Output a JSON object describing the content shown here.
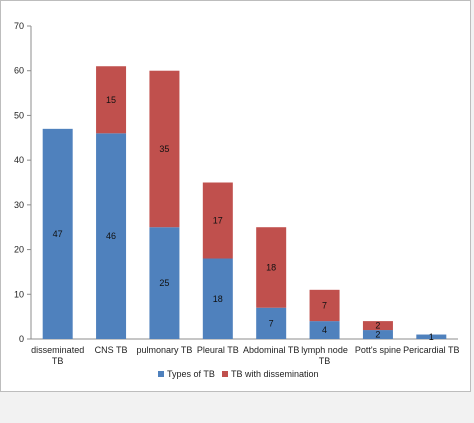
{
  "chart_data": {
    "type": "bar",
    "stacked": true,
    "categories": [
      [
        "disseminated",
        "TB"
      ],
      [
        "CNS TB"
      ],
      [
        "pulmonary TB"
      ],
      [
        "Pleural TB"
      ],
      [
        "Abdominal TB"
      ],
      [
        "lymph node",
        "TB"
      ],
      [
        "Pott's spine"
      ],
      [
        "Pericardial TB"
      ]
    ],
    "series": [
      {
        "name": "Types of TB",
        "color": "#4f81bd",
        "values": [
          47,
          46,
          25,
          18,
          7,
          4,
          2,
          1
        ]
      },
      {
        "name": "TB with dissemination",
        "color": "#c0504d",
        "values": [
          0,
          15,
          35,
          17,
          18,
          7,
          2,
          0
        ]
      }
    ],
    "data_labels": [
      [
        "47",
        "46",
        "25",
        "18",
        "7",
        "4",
        "2",
        "1"
      ],
      [
        "",
        "15",
        "35",
        "17",
        "18",
        "7",
        "2",
        ""
      ]
    ],
    "ylim": [
      0,
      70
    ],
    "yticks": [
      "0",
      "10",
      "20",
      "30",
      "40",
      "50",
      "60",
      "70"
    ],
    "grid": false,
    "legend": "bottom"
  }
}
